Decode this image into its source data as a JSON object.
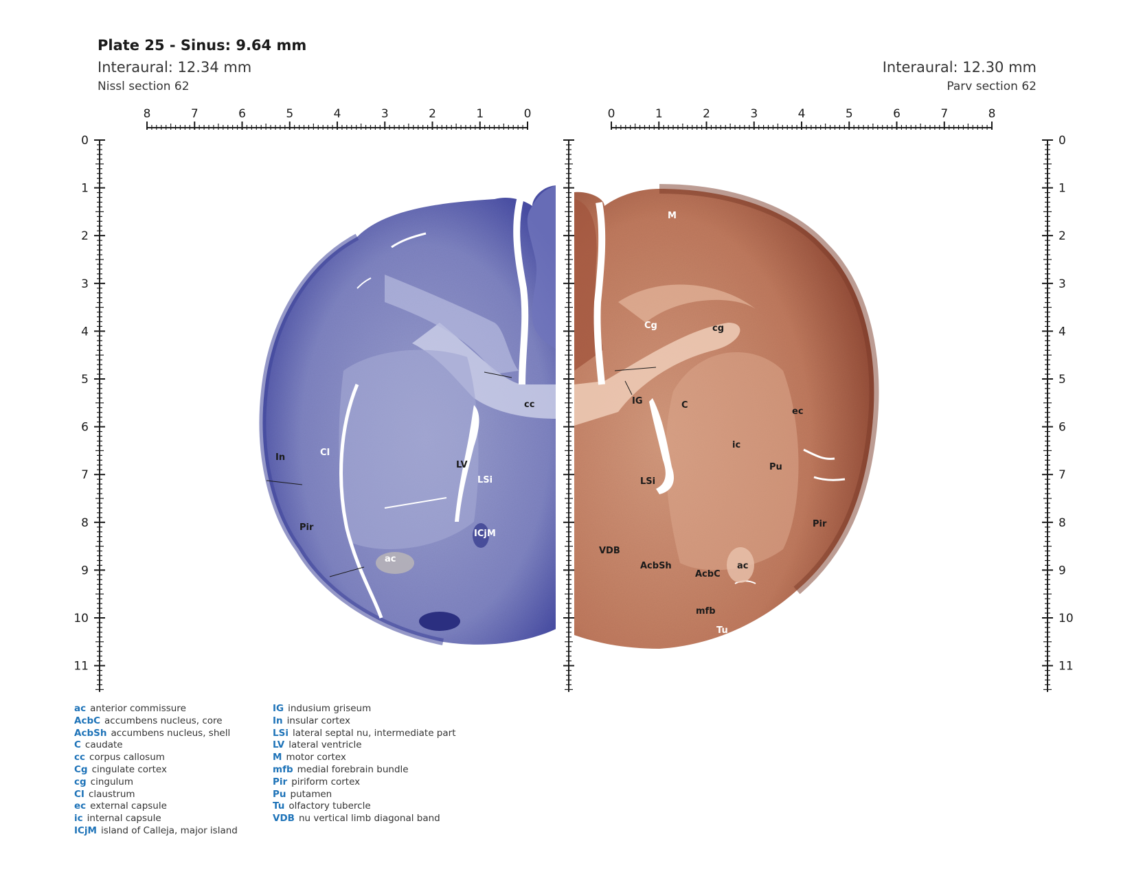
{
  "header": {
    "title": "Plate 25 - Sinus: 9.64 mm",
    "left_interaural": "Interaural: 12.34 mm",
    "left_section": "Nissl section 62",
    "right_interaural": "Interaural: 12.30 mm",
    "right_section": "Parv section 62"
  },
  "scales": {
    "top_left_ticks": [
      "8",
      "7",
      "6",
      "5",
      "4",
      "3",
      "2",
      "1",
      "0"
    ],
    "top_right_ticks": [
      "0",
      "1",
      "2",
      "3",
      "4",
      "5",
      "6",
      "7",
      "8"
    ],
    "vertical_ticks": [
      "0",
      "1",
      "2",
      "3",
      "4",
      "5",
      "6",
      "7",
      "8",
      "9",
      "10",
      "11"
    ]
  },
  "colors": {
    "nissl_stain": "#4a4fa6",
    "nissl_bg": "#c9cce6",
    "parv_stain": "#9a4f3a",
    "parv_light": "#e7c2ad",
    "legend_abbr": "#1e73b8"
  },
  "labels": {
    "nissl": {
      "cc": "cc",
      "CI": "CI",
      "In": "In",
      "LV": "LV",
      "LSi": "LSi",
      "Pir": "Pir",
      "ICjM": "ICjM",
      "ac": "ac"
    },
    "parv": {
      "M": "M",
      "Cg": "Cg",
      "cg": "cg",
      "IG": "IG",
      "C": "C",
      "ec": "ec",
      "ic": "ic",
      "Pu": "Pu",
      "LSi": "LSi",
      "Pir": "Pir",
      "VDB": "VDB",
      "AcbSh": "AcbSh",
      "AcbC": "AcbC",
      "ac": "ac",
      "mfb": "mfb",
      "Tu": "Tu"
    }
  },
  "legend": {
    "col1": [
      {
        "abbr": "ac",
        "desc": "anterior commissure"
      },
      {
        "abbr": "AcbC",
        "desc": "accumbens nucleus, core"
      },
      {
        "abbr": "AcbSh",
        "desc": "accumbens nucleus, shell"
      },
      {
        "abbr": "C",
        "desc": "caudate"
      },
      {
        "abbr": "cc",
        "desc": "corpus callosum"
      },
      {
        "abbr": "Cg",
        "desc": "cingulate cortex"
      },
      {
        "abbr": "cg",
        "desc": "cingulum"
      },
      {
        "abbr": "CI",
        "desc": "claustrum"
      },
      {
        "abbr": "ec",
        "desc": "external capsule"
      },
      {
        "abbr": "ic",
        "desc": "internal capsule"
      },
      {
        "abbr": "ICjM",
        "desc": "island of Calleja, major island"
      }
    ],
    "col2": [
      {
        "abbr": "IG",
        "desc": "indusium griseum"
      },
      {
        "abbr": "In",
        "desc": "insular cortex"
      },
      {
        "abbr": "LSi",
        "desc": "lateral septal nu, intermediate part"
      },
      {
        "abbr": "LV",
        "desc": "lateral ventricle"
      },
      {
        "abbr": "M",
        "desc": "motor cortex"
      },
      {
        "abbr": "mfb",
        "desc": "medial forebrain bundle"
      },
      {
        "abbr": "Pir",
        "desc": "piriform cortex"
      },
      {
        "abbr": "Pu",
        "desc": "putamen"
      },
      {
        "abbr": "Tu",
        "desc": "olfactory tubercle"
      },
      {
        "abbr": "VDB",
        "desc": "nu vertical limb diagonal band"
      }
    ]
  }
}
